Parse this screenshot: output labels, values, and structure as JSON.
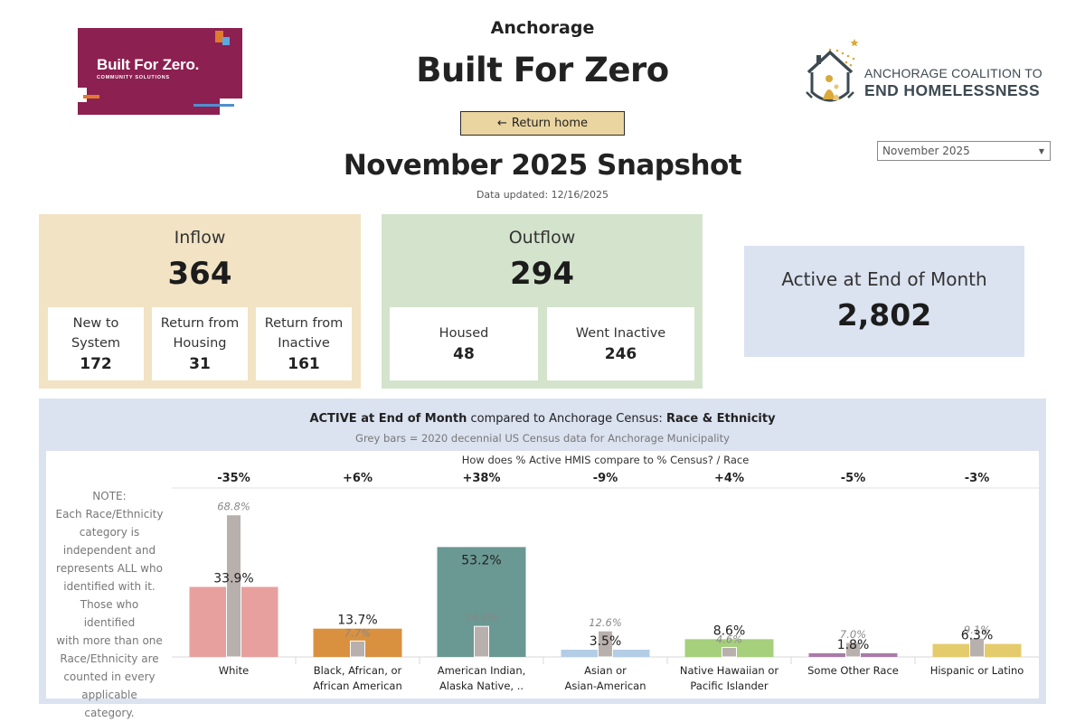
{
  "logos": {
    "left": {
      "title": "Built For Zero.",
      "subtitle": "COMMUNITY SOLUTIONS",
      "bg_color": "#8c2051"
    },
    "right": {
      "line1": "ANCHORAGE COALITION TO",
      "line2": "END HOMELESSNESS",
      "accent_color": "#d9a93a"
    }
  },
  "header": {
    "city": "Anchorage",
    "title": "Built For Zero",
    "return_button": {
      "icon": "arrow-left-icon",
      "arrow": "←",
      "label": "Return home"
    },
    "snapshot_title": "November 2025 Snapshot",
    "updated": "Data updated: 12/16/2025",
    "month_selector": {
      "value": "November 2025",
      "icon": "chevron-down-icon",
      "caret": "▼"
    }
  },
  "kpis": {
    "inflow": {
      "title": "Inflow",
      "value": "364",
      "bg_color": "#f2e3c4",
      "items": [
        {
          "label_line1": "New to",
          "label_line2": "System",
          "value": "172"
        },
        {
          "label_line1": "Return from",
          "label_line2": "Housing",
          "value": "31"
        },
        {
          "label_line1": "Return from",
          "label_line2": "Inactive",
          "value": "161"
        }
      ]
    },
    "outflow": {
      "title": "Outflow",
      "value": "294",
      "bg_color": "#d4e3cc",
      "items": [
        {
          "label": "Housed",
          "value": "48"
        },
        {
          "label": "Went Inactive",
          "value": "246"
        }
      ]
    },
    "active": {
      "title": "Active at End of Month",
      "value": "2,802",
      "bg_color": "#dbe2f0"
    }
  },
  "chart_panel": {
    "title_bold1": "ACTIVE at End of Month",
    "title_mid": " compared to Anchorage Census: ",
    "title_bold2": "Race & Ethnicity",
    "subtitle": "Grey bars = 2020 decennial US Census data for Anchorage Municipality",
    "note_lines": [
      "NOTE:",
      "Each Race/Ethnicity",
      "category is",
      "independent and",
      "represents ALL who",
      "identified with it.",
      "Those who identified",
      "with more than one",
      "Race/Ethnicity are",
      "counted in every",
      "applicable category."
    ]
  },
  "chart_data": {
    "type": "bar",
    "title": "How does % Active HMIS compare to % Census? / Race",
    "xlabel": "Race",
    "ylabel": "",
    "ylim": [
      0,
      70
    ],
    "grid": false,
    "legend": "none",
    "categories": [
      {
        "line1": "White",
        "line2": ""
      },
      {
        "line1": "Black, African, or",
        "line2": "African American"
      },
      {
        "line1": "American Indian,",
        "line2": "Alaska Native, .."
      },
      {
        "line1": "Asian or",
        "line2": "Asian-American"
      },
      {
        "line1": "Native Hawaiian or",
        "line2": "Pacific Islander"
      },
      {
        "line1": "Some Other Race",
        "line2": ""
      },
      {
        "line1": "Hispanic or Latino",
        "line2": ""
      }
    ],
    "difference_labels": [
      "-35%",
      "+6%",
      "+38%",
      "-9%",
      "+4%",
      "-5%",
      "-3%"
    ],
    "series": [
      {
        "name": "% Active HMIS",
        "values": [
          33.9,
          13.7,
          53.2,
          3.5,
          8.6,
          1.8,
          6.3
        ],
        "labels": [
          "33.9%",
          "13.7%",
          "53.2%",
          "3.5%",
          "8.6%",
          "1.8%",
          "6.3%"
        ],
        "colors": [
          "#e8a09e",
          "#d99140",
          "#6a9892",
          "#b3cde6",
          "#a6d07c",
          "#a97ba8",
          "#e4cc6c"
        ]
      },
      {
        "name": "% Census (2020)",
        "values": [
          68.8,
          7.7,
          14.8,
          12.6,
          4.6,
          7.0,
          9.1
        ],
        "labels": [
          "68.8%",
          "7.7%",
          "14.8%",
          "12.6%",
          "4.6%",
          "7.0%",
          "9.1%"
        ],
        "color": "#b8b0ac"
      }
    ]
  }
}
